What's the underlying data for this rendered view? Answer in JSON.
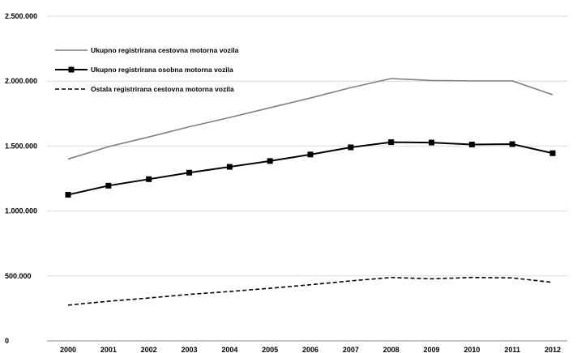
{
  "chart_data": {
    "type": "line",
    "title": "",
    "xlabel": "",
    "ylabel": "",
    "x": [
      "2000",
      "2001",
      "2002",
      "2003",
      "2004",
      "2005",
      "2006",
      "2007",
      "2008",
      "2009",
      "2010",
      "2011",
      "2012"
    ],
    "ylim": [
      0,
      2500000
    ],
    "yticks": [
      0,
      500000,
      1000000,
      1500000,
      2000000,
      2500000
    ],
    "ytick_labels": [
      "0",
      "500.000",
      "1.000.000",
      "1.500.000",
      "2.000.000",
      "2.500.000"
    ],
    "grid": "horizontal",
    "legend_position": "top-left",
    "series": [
      {
        "name": "Ukupno registrirana cestovna motorna vozila",
        "style": "solid",
        "color": "#808080",
        "marker": "none",
        "values": [
          1400000,
          1495000,
          1570000,
          1648000,
          1720000,
          1795000,
          1870000,
          1950000,
          2020000,
          2005000,
          2002000,
          2002000,
          1895000
        ]
      },
      {
        "name": "Ukupno registrirana osobna motorna vozila",
        "style": "solid",
        "color": "#000000",
        "marker": "square",
        "values": [
          1125000,
          1195000,
          1245000,
          1295000,
          1340000,
          1385000,
          1435000,
          1490000,
          1530000,
          1527000,
          1512000,
          1515000,
          1445000
        ]
      },
      {
        "name": "Ostala registrirana cestovna motorna vozila",
        "style": "dashed",
        "color": "#000000",
        "marker": "none",
        "values": [
          275000,
          305000,
          330000,
          358000,
          380000,
          405000,
          432000,
          462000,
          488000,
          478000,
          488000,
          485000,
          450000
        ]
      }
    ]
  }
}
